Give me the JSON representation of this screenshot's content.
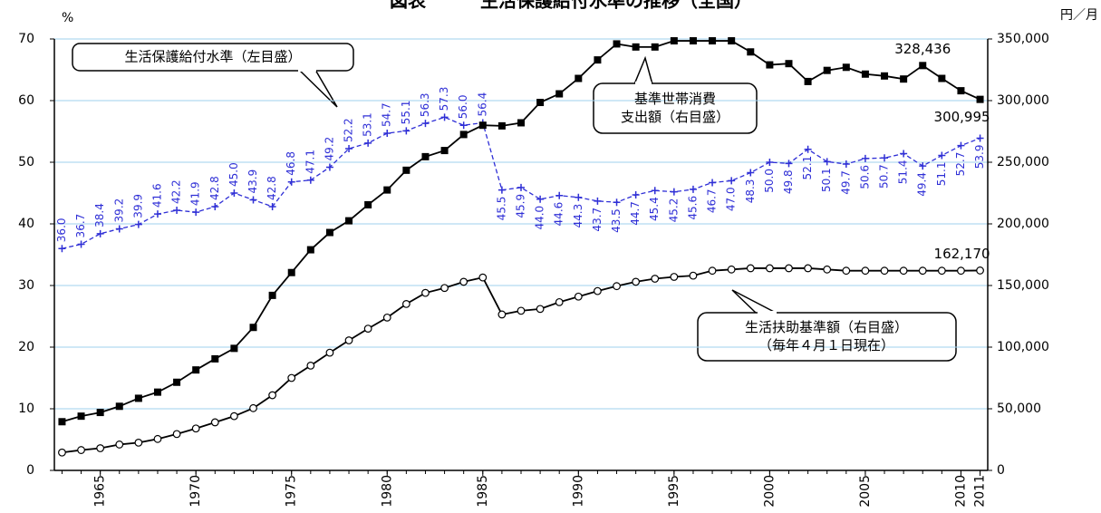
{
  "chart_data": {
    "type": "line",
    "title": "図表　　　生活保護給付水準の推移（全国）",
    "y_unit": "%",
    "y2_unit": "円／月",
    "x": [
      1963,
      1964,
      1965,
      1966,
      1967,
      1968,
      1969,
      1970,
      1971,
      1972,
      1973,
      1974,
      1975,
      1976,
      1977,
      1978,
      1979,
      1980,
      1981,
      1982,
      1983,
      1984,
      1985,
      1986,
      1987,
      1988,
      1989,
      1990,
      1991,
      1992,
      1993,
      1994,
      1995,
      1996,
      1997,
      1998,
      1999,
      2000,
      2001,
      2002,
      2003,
      2004,
      2005,
      2006,
      2007,
      2008,
      2009,
      2010,
      2011
    ],
    "xlim": [
      1962.6,
      2011.4
    ],
    "xticks": [
      1965,
      1970,
      1975,
      1980,
      1985,
      1990,
      1995,
      2000,
      2005,
      2010,
      2011
    ],
    "ylim": [
      0,
      70
    ],
    "yticks": [
      0,
      10,
      20,
      30,
      40,
      50,
      60,
      70
    ],
    "y2lim": [
      0,
      350000
    ],
    "y2ticks": [
      0,
      {
        "value": 50000,
        "label": "50,000"
      },
      {
        "value": 100000,
        "label": "100,000"
      },
      {
        "value": 150000,
        "label": "150,000"
      },
      {
        "value": 200000,
        "label": "200,000"
      },
      {
        "value": 250000,
        "label": "250,000"
      },
      {
        "value": 300000,
        "label": "300,000"
      },
      {
        "value": 350000,
        "label": "350,000"
      }
    ],
    "grid": true,
    "series": [
      {
        "name": "生活保護給付水準",
        "color": "#2f2fd6",
        "marker": "plus",
        "dashed": true,
        "values": [
          36.0,
          36.7,
          38.4,
          39.2,
          39.9,
          41.6,
          42.2,
          41.9,
          42.8,
          45.0,
          43.9,
          42.8,
          46.8,
          47.1,
          49.2,
          52.2,
          53.1,
          54.7,
          55.1,
          56.3,
          57.3,
          56.0,
          56.4,
          45.5,
          45.9,
          44.0,
          44.6,
          44.3,
          43.7,
          43.5,
          44.7,
          45.4,
          45.2,
          45.6,
          46.7,
          47.0,
          48.3,
          50.0,
          49.8,
          52.1,
          50.1,
          49.7,
          50.6,
          50.7,
          51.4,
          49.4,
          51.1,
          52.7,
          53.9
        ],
        "value_labels": [
          "36.0",
          "36.7",
          "38.4",
          "39.2",
          "39.9",
          "41.6",
          "42.2",
          "41.9",
          "42.8",
          "45.0",
          "43.9",
          "42.8",
          "46.8",
          "47.1",
          "49.2",
          "52.2",
          "53.1",
          "54.7",
          "55.1",
          "56.3",
          "57.3",
          "56.0",
          "56.4",
          "45.5",
          "45.9",
          "44.0",
          "44.6",
          "44.3",
          "43.7",
          "43.5",
          "44.7",
          "45.4",
          "45.2",
          "45.6",
          "46.7",
          "47.0",
          "48.3",
          "50.0",
          "49.8",
          "52.1",
          "50.1",
          "49.7",
          "50.6",
          "50.7",
          "51.4",
          "49.4",
          "51.1",
          "52.7",
          "53.9"
        ]
      },
      {
        "name": "基準世帯消費支出額",
        "color": "#000000",
        "marker": "square",
        "axis": "y2",
        "values": [
          39500,
          44000,
          47000,
          52000,
          58500,
          63500,
          71500,
          81500,
          90500,
          99000,
          116000,
          142000,
          160500,
          179000,
          193000,
          202500,
          215500,
          227500,
          243500,
          254500,
          259500,
          272500,
          280000,
          279500,
          282000,
          298500,
          305500,
          318000,
          333000,
          346000,
          343500,
          343500,
          348500,
          348500,
          348500,
          348500,
          339500,
          329000,
          330000,
          315500,
          324500,
          327000,
          321500,
          320000,
          317500,
          328436,
          318000,
          308000,
          300995
        ],
        "value_labels": [
          null,
          null,
          null,
          null,
          null,
          null,
          null,
          null,
          null,
          null,
          null,
          null,
          null,
          null,
          null,
          null,
          null,
          null,
          null,
          null,
          null,
          null,
          null,
          null,
          null,
          null,
          null,
          null,
          null,
          null,
          null,
          null,
          null,
          null,
          null,
          null,
          null,
          null,
          null,
          null,
          null,
          null,
          null,
          null,
          null,
          "328,436",
          null,
          null,
          "300,995"
        ]
      },
      {
        "name": "生活扶助基準額",
        "color": "#000000",
        "marker": "circle",
        "axis": "y2",
        "values": [
          14500,
          16500,
          18000,
          21000,
          22500,
          25500,
          29500,
          34000,
          39000,
          44000,
          50500,
          61000,
          75000,
          85000,
          95500,
          105500,
          115000,
          124000,
          135000,
          144000,
          148000,
          153000,
          156500,
          126500,
          129500,
          131000,
          136500,
          141000,
          145500,
          149500,
          153000,
          155500,
          157000,
          158000,
          162000,
          163000,
          164000,
          164000,
          164000,
          164000,
          163000,
          162000,
          162000,
          162000,
          162000,
          162000,
          162000,
          162000,
          162170
        ],
        "value_labels": [
          null,
          null,
          null,
          null,
          null,
          null,
          null,
          null,
          null,
          null,
          null,
          null,
          null,
          null,
          null,
          null,
          null,
          null,
          null,
          null,
          null,
          null,
          null,
          null,
          null,
          null,
          null,
          null,
          null,
          null,
          null,
          null,
          null,
          null,
          null,
          null,
          null,
          null,
          null,
          null,
          null,
          null,
          null,
          null,
          null,
          null,
          null,
          null,
          "162,170"
        ]
      }
    ],
    "annotations": [
      [
        "生活保護給付水準（左目盛）"
      ],
      [
        "基準世帯消費",
        "支出額（右目盛）"
      ],
      [
        "生活扶助基準額（右目盛）",
        "（毎年４月１日現在）"
      ]
    ]
  }
}
